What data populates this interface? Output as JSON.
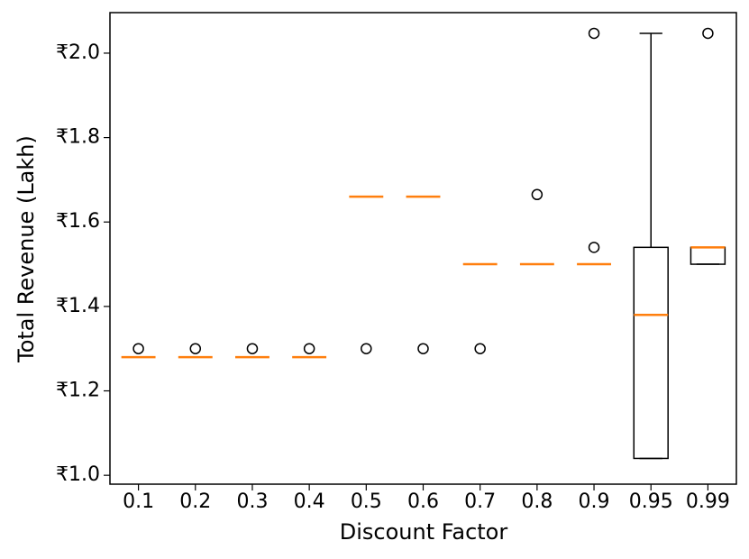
{
  "chart_data": {
    "type": "box",
    "x_label": "Discount Factor",
    "y_label": "Total Revenue (Lakh)",
    "categories": [
      "0.1",
      "0.2",
      "0.3",
      "0.4",
      "0.5",
      "0.6",
      "0.7",
      "0.8",
      "0.9",
      "0.95",
      "0.99"
    ],
    "boxes": [
      {
        "q1": 1.28,
        "median": 1.28,
        "q3": 1.28,
        "whislo": 1.28,
        "whishi": 1.28,
        "fliers": [
          1.3
        ]
      },
      {
        "q1": 1.28,
        "median": 1.28,
        "q3": 1.28,
        "whislo": 1.28,
        "whishi": 1.28,
        "fliers": [
          1.3
        ]
      },
      {
        "q1": 1.28,
        "median": 1.28,
        "q3": 1.28,
        "whislo": 1.28,
        "whishi": 1.28,
        "fliers": [
          1.3
        ]
      },
      {
        "q1": 1.28,
        "median": 1.28,
        "q3": 1.28,
        "whislo": 1.28,
        "whishi": 1.28,
        "fliers": [
          1.3
        ]
      },
      {
        "q1": 1.66,
        "median": 1.66,
        "q3": 1.66,
        "whislo": 1.66,
        "whishi": 1.66,
        "fliers": [
          1.3
        ]
      },
      {
        "q1": 1.66,
        "median": 1.66,
        "q3": 1.66,
        "whislo": 1.66,
        "whishi": 1.66,
        "fliers": [
          1.3
        ]
      },
      {
        "q1": 1.5,
        "median": 1.5,
        "q3": 1.5,
        "whislo": 1.5,
        "whishi": 1.5,
        "fliers": [
          1.3
        ]
      },
      {
        "q1": 1.5,
        "median": 1.5,
        "q3": 1.5,
        "whislo": 1.5,
        "whishi": 1.5,
        "fliers": [
          1.665
        ]
      },
      {
        "q1": 1.5,
        "median": 1.5,
        "q3": 1.5,
        "whislo": 1.5,
        "whishi": 1.5,
        "fliers": [
          1.54,
          2.047
        ]
      },
      {
        "q1": 1.04,
        "median": 1.38,
        "q3": 1.54,
        "whislo": 1.04,
        "whishi": 2.047,
        "fliers": []
      },
      {
        "q1": 1.5,
        "median": 1.54,
        "q3": 1.54,
        "whislo": 1.5,
        "whishi": 1.54,
        "fliers": [
          2.047
        ]
      }
    ],
    "box_color": "#000000",
    "median_color": "#ff7f0e",
    "ylim": [
      0.979,
      2.096
    ],
    "yticks": [
      {
        "value": 1.0,
        "label": "₹1.0"
      },
      {
        "value": 1.2,
        "label": "₹1.2"
      },
      {
        "value": 1.4,
        "label": "₹1.4"
      },
      {
        "value": 1.6,
        "label": "₹1.6"
      },
      {
        "value": 1.8,
        "label": "₹1.8"
      },
      {
        "value": 2.0,
        "label": "₹2.0"
      }
    ],
    "grid": false
  }
}
